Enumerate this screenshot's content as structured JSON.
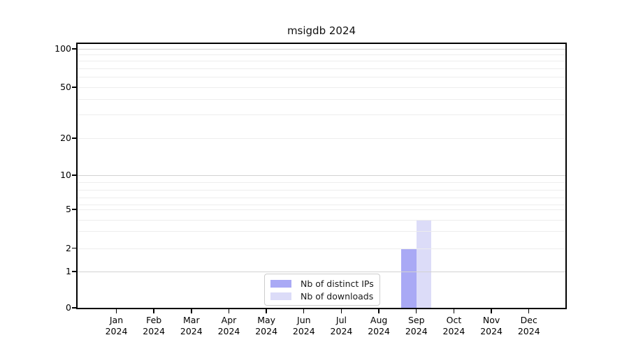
{
  "chart_data": {
    "type": "bar",
    "title": "msigdb 2024",
    "categories": [
      "Jan",
      "Feb",
      "Mar",
      "Apr",
      "May",
      "Jun",
      "Jul",
      "Aug",
      "Sep",
      "Oct",
      "Nov",
      "Dec"
    ],
    "year_label": "2024",
    "series": [
      {
        "name": "Nb of distinct IPs",
        "color": "#a9a9f5",
        "values": [
          0,
          0,
          0,
          0,
          0,
          0,
          0,
          0,
          2,
          0,
          0,
          0
        ]
      },
      {
        "name": "Nb of downloads",
        "color": "#dcdcf8",
        "values": [
          0,
          0,
          0,
          0,
          0,
          0,
          0,
          0,
          4,
          0,
          0,
          0
        ]
      }
    ],
    "yscale": "symlog-like (log with linear 0-1 segment)",
    "ylim": [
      0,
      110
    ],
    "y_ticks": [
      0,
      1,
      2,
      5,
      10,
      20,
      50,
      100
    ],
    "y_tick_labels": [
      "0",
      "1",
      "2",
      "5",
      "10",
      "20",
      "50",
      "100"
    ],
    "y_minor_ticks": [
      3,
      4,
      6,
      7,
      8,
      9,
      30,
      40,
      60,
      70,
      80,
      90
    ],
    "grid": "horizontal, major and minor",
    "legend_position": "lower center inside plot",
    "background_color": "#ffffff",
    "spine_color": "#000000"
  },
  "legend": {
    "items": [
      {
        "label": "Nb of distinct IPs",
        "color": "#a9a9f5"
      },
      {
        "label": "Nb of downloads",
        "color": "#dcdcf8"
      }
    ]
  }
}
